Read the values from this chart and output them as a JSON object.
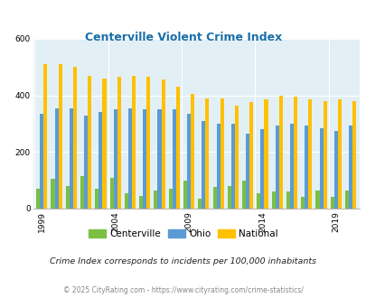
{
  "title": "Centerville Violent Crime Index",
  "years_data": [
    1999,
    2000,
    2001,
    2002,
    2003,
    2004,
    2005,
    2006,
    2007,
    2008,
    2009,
    2010,
    2011,
    2012,
    2013,
    2014,
    2015,
    2016,
    2017,
    2018,
    2019,
    2020
  ],
  "centerville_data": [
    70,
    105,
    80,
    115,
    70,
    110,
    55,
    45,
    65,
    70,
    100,
    35,
    75,
    80,
    100,
    55,
    60,
    60,
    40,
    65,
    40,
    65
  ],
  "ohio_data": [
    335,
    355,
    355,
    330,
    340,
    350,
    355,
    350,
    350,
    350,
    335,
    310,
    300,
    300,
    265,
    280,
    295,
    300,
    295,
    285,
    275,
    295
  ],
  "national_data": [
    510,
    510,
    500,
    470,
    460,
    465,
    470,
    465,
    455,
    430,
    405,
    390,
    390,
    365,
    375,
    385,
    400,
    395,
    385,
    380,
    385,
    380
  ],
  "centerville_color": "#7bc043",
  "ohio_color": "#5b9bd5",
  "national_color": "#ffc000",
  "bg_color": "#e2f0f5",
  "ylim": [
    0,
    600
  ],
  "yticks": [
    0,
    200,
    400,
    600
  ],
  "title_color": "#1a6ea8",
  "title_fontsize": 9,
  "subtitle": "Crime Index corresponds to incidents per 100,000 inhabitants",
  "footer": "© 2025 CityRating.com - https://www.cityrating.com/crime-statistics/",
  "legend_labels": [
    "Centerville",
    "Ohio",
    "National"
  ],
  "tick_years": [
    1999,
    2004,
    2009,
    2014,
    2019
  ]
}
